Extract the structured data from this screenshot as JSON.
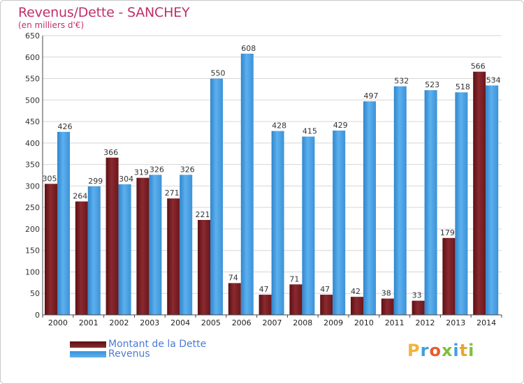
{
  "page": {
    "title": "Revenus/Dette - SANCHEY",
    "subtitle": "(en milliers d'€)"
  },
  "legend": {
    "items": [
      {
        "label": "Montant de la Dette",
        "color": "#7a1f24"
      },
      {
        "label": "Revenus",
        "color": "#4ea3e4"
      }
    ]
  },
  "logo": {
    "text": "Proxiti",
    "letters": [
      "P",
      "r",
      "o",
      "x",
      "i",
      "t",
      "i"
    ],
    "colors": [
      "#f2b33d",
      "#3fa0dd",
      "#e95c2b",
      "#7fbf3f",
      "#3fa0dd",
      "#e8a533",
      "#7fbf3f"
    ]
  },
  "chart_data": {
    "type": "bar",
    "categories": [
      "2000",
      "2001",
      "2002",
      "2003",
      "2004",
      "2005",
      "2006",
      "2007",
      "2008",
      "2009",
      "2010",
      "2011",
      "2012",
      "2013",
      "2014"
    ],
    "series": [
      {
        "name": "Montant de la Dette",
        "color": "#7a1f24",
        "values": [
          305,
          264,
          366,
          319,
          271,
          221,
          74,
          47,
          71,
          47,
          42,
          38,
          33,
          179,
          566
        ]
      },
      {
        "name": "Revenus",
        "color": "#4ea3e4",
        "values": [
          426,
          299,
          304,
          326,
          326,
          550,
          608,
          428,
          415,
          429,
          497,
          532,
          523,
          518,
          534
        ]
      }
    ],
    "yticks": [
      0,
      50,
      100,
      150,
      200,
      250,
      300,
      350,
      400,
      450,
      500,
      550,
      600,
      650
    ],
    "ylim": [
      0,
      650
    ],
    "grid": true
  }
}
